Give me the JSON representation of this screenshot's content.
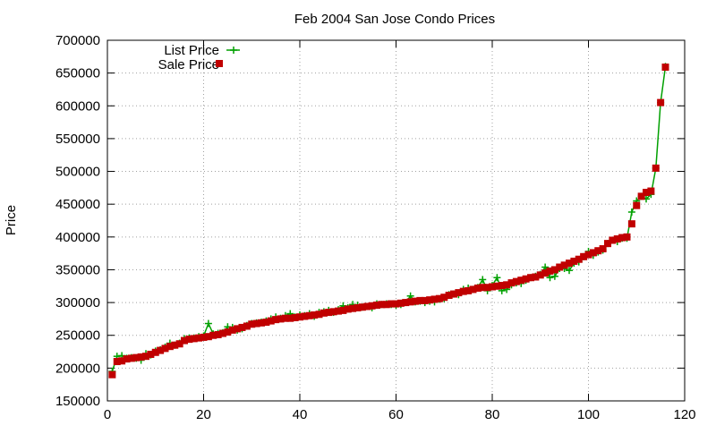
{
  "chart_data": {
    "type": "line",
    "title": "Feb 2004 San Jose Condo Prices",
    "xlabel": "",
    "ylabel": "Price",
    "xlim": [
      0,
      120
    ],
    "ylim": [
      150000,
      700000
    ],
    "x_ticks": [
      0,
      20,
      40,
      60,
      80,
      100,
      120
    ],
    "y_ticks": [
      150000,
      200000,
      250000,
      300000,
      350000,
      400000,
      450000,
      500000,
      550000,
      600000,
      650000,
      700000
    ],
    "grid": true,
    "legend_position": "top-left",
    "colors": {
      "list": "#00a000",
      "sale": "#c00000"
    },
    "series": [
      {
        "name": "List Price",
        "style": "linespoints",
        "marker": "plus",
        "x": [
          1,
          2,
          3,
          4,
          5,
          6,
          7,
          8,
          9,
          10,
          11,
          12,
          13,
          14,
          15,
          16,
          17,
          18,
          19,
          20,
          21,
          22,
          23,
          24,
          25,
          26,
          27,
          28,
          29,
          30,
          31,
          32,
          33,
          34,
          35,
          36,
          37,
          38,
          39,
          40,
          41,
          42,
          43,
          44,
          45,
          46,
          47,
          48,
          49,
          50,
          51,
          52,
          53,
          54,
          55,
          56,
          57,
          58,
          59,
          60,
          61,
          62,
          63,
          64,
          65,
          66,
          67,
          68,
          69,
          70,
          71,
          72,
          73,
          74,
          75,
          76,
          77,
          78,
          79,
          80,
          81,
          82,
          83,
          84,
          85,
          86,
          87,
          88,
          89,
          90,
          91,
          92,
          93,
          94,
          95,
          96,
          97,
          98,
          99,
          100,
          101,
          102,
          103,
          104,
          105,
          106,
          107,
          108,
          109,
          110,
          111,
          112,
          113,
          114,
          115,
          116
        ],
        "values": [
          195000,
          218000,
          219000,
          215000,
          216000,
          215000,
          212000,
          222000,
          220000,
          226000,
          228000,
          232000,
          238000,
          235000,
          238000,
          245000,
          246000,
          246000,
          248000,
          249000,
          268000,
          252000,
          253000,
          254000,
          263000,
          262000,
          258000,
          260000,
          265000,
          268000,
          269000,
          270000,
          272000,
          275000,
          278000,
          276000,
          280000,
          283000,
          278000,
          281000,
          280000,
          283000,
          279000,
          285000,
          286000,
          288000,
          285000,
          289000,
          295000,
          292000,
          297000,
          296000,
          293000,
          294000,
          292000,
          298000,
          297000,
          298000,
          297000,
          296000,
          297000,
          300000,
          310000,
          301000,
          302000,
          300000,
          302000,
          301000,
          305000,
          306000,
          312000,
          313000,
          312000,
          320000,
          322000,
          320000,
          323000,
          335000,
          318000,
          326000,
          338000,
          318000,
          320000,
          327000,
          330000,
          329000,
          334000,
          338000,
          340000,
          343000,
          354000,
          338000,
          340000,
          352000,
          352000,
          349000,
          360000,
          362000,
          370000,
          378000,
          372000,
          377000,
          380000,
          390000,
          395000,
          393000,
          398000,
          398000,
          438000,
          455000,
          462000,
          458000,
          465000,
          505000,
          605000,
          660000
        ]
      },
      {
        "name": "Sale Price",
        "style": "points",
        "marker": "square",
        "x": [
          1,
          2,
          3,
          4,
          5,
          6,
          7,
          8,
          9,
          10,
          11,
          12,
          13,
          14,
          15,
          16,
          17,
          18,
          19,
          20,
          21,
          22,
          23,
          24,
          25,
          26,
          27,
          28,
          29,
          30,
          31,
          32,
          33,
          34,
          35,
          36,
          37,
          38,
          39,
          40,
          41,
          42,
          43,
          44,
          45,
          46,
          47,
          48,
          49,
          50,
          51,
          52,
          53,
          54,
          55,
          56,
          57,
          58,
          59,
          60,
          61,
          62,
          63,
          64,
          65,
          66,
          67,
          68,
          69,
          70,
          71,
          72,
          73,
          74,
          75,
          76,
          77,
          78,
          79,
          80,
          81,
          82,
          83,
          84,
          85,
          86,
          87,
          88,
          89,
          90,
          91,
          92,
          93,
          94,
          95,
          96,
          97,
          98,
          99,
          100,
          101,
          102,
          103,
          104,
          105,
          106,
          107,
          108,
          109,
          110,
          111,
          112,
          113,
          114,
          115,
          116
        ],
        "values": [
          190000,
          210000,
          211000,
          214000,
          215000,
          216000,
          217000,
          218000,
          221000,
          224000,
          227000,
          230000,
          233000,
          235000,
          237000,
          242000,
          244000,
          245000,
          246000,
          247000,
          248000,
          250000,
          251000,
          253000,
          255000,
          258000,
          260000,
          262000,
          264000,
          267000,
          268000,
          269000,
          270000,
          272000,
          274000,
          275000,
          276000,
          276000,
          277000,
          278000,
          279000,
          280000,
          281000,
          282000,
          284000,
          285000,
          286000,
          287000,
          288000,
          290000,
          291000,
          292000,
          293000,
          294000,
          295000,
          296000,
          297000,
          297000,
          298000,
          298000,
          299000,
          300000,
          301000,
          302000,
          303000,
          303000,
          304000,
          305000,
          306000,
          308000,
          311000,
          313000,
          315000,
          317000,
          318000,
          320000,
          322000,
          323000,
          323000,
          324000,
          325000,
          326000,
          327000,
          330000,
          332000,
          334000,
          336000,
          338000,
          339000,
          342000,
          345000,
          348000,
          350000,
          354000,
          357000,
          360000,
          363000,
          366000,
          370000,
          373000,
          376000,
          379000,
          382000,
          390000,
          395000,
          397000,
          399000,
          400000,
          420000,
          448000,
          462000,
          468000,
          470000,
          505000,
          605000,
          659000
        ]
      }
    ]
  }
}
